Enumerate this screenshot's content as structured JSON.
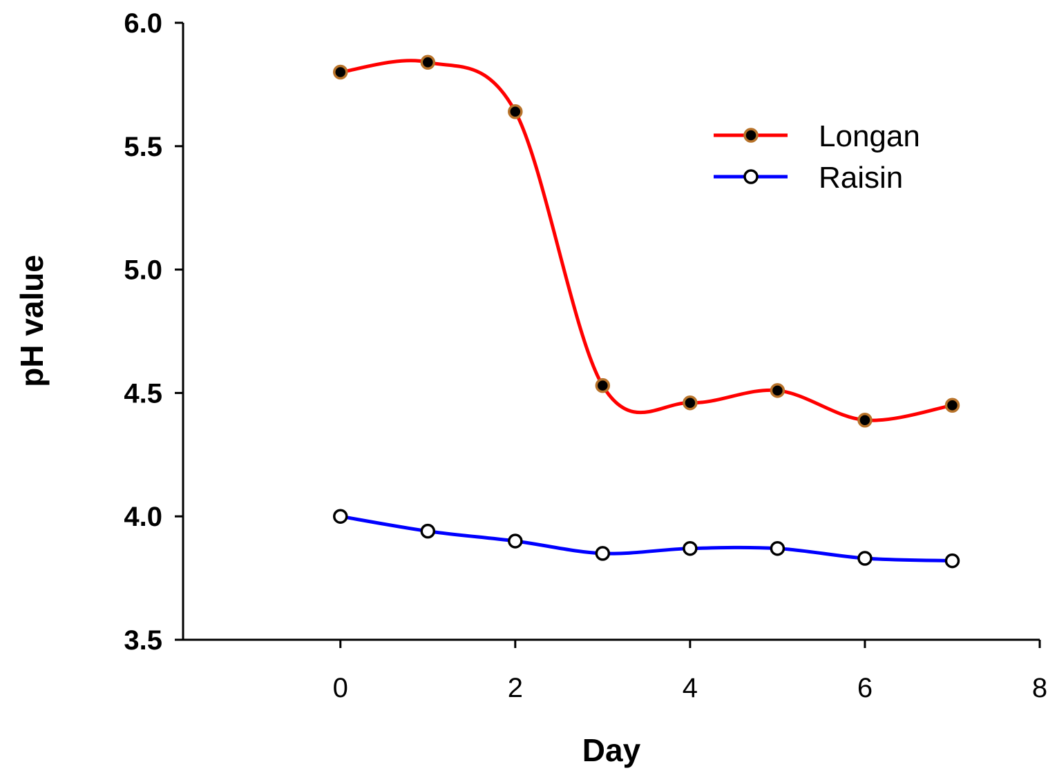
{
  "chart_data": {
    "type": "line",
    "title": "",
    "xlabel": "Day",
    "ylabel": "pH value",
    "xlim": [
      -1.8,
      8
    ],
    "ylim": [
      3.5,
      6.0
    ],
    "xticks": [
      "0",
      "2",
      "4",
      "6",
      "8"
    ],
    "yticks": [
      "3.5",
      "4.0",
      "4.5",
      "5.0",
      "5.5",
      "6.0"
    ],
    "x": [
      0,
      1,
      2,
      3,
      4,
      5,
      6,
      7
    ],
    "grid": false,
    "legend_position": "top-right",
    "series": [
      {
        "name": "Longan",
        "values": [
          5.8,
          5.84,
          5.64,
          4.53,
          4.46,
          4.51,
          4.39,
          4.45
        ],
        "color": "#ff0000",
        "marker_fill": "#000000",
        "marker_edge": "#b8732a"
      },
      {
        "name": "Raisin",
        "values": [
          4.0,
          3.94,
          3.9,
          3.85,
          3.87,
          3.87,
          3.83,
          3.82
        ],
        "color": "#0000ff",
        "marker_fill": "#ffffff",
        "marker_edge": "#000000"
      }
    ]
  }
}
